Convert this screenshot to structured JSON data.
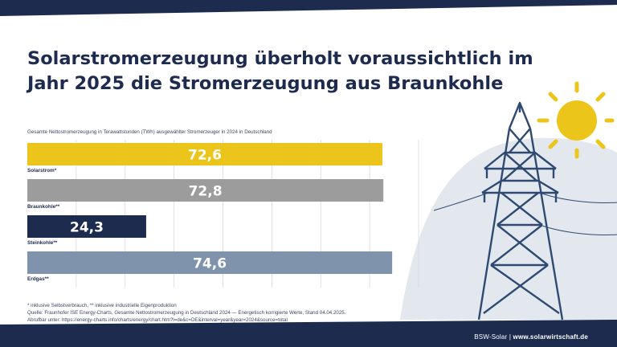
{
  "headline": {
    "line1": "Solarstromerzeugung überholt voraussichtlich im",
    "line2": "Jahr 2025 die Stromerzeugung aus Braunkohle"
  },
  "chart_data": {
    "type": "bar",
    "orientation": "horizontal",
    "subtitle": "Gesamte Nettostromerzeugung in Terawattstunden (TWh) ausgewählter Stromerzeuger in 2024 in Deutschland",
    "categories": [
      "Solarstrom*",
      "Braunkohle**",
      "Steinkohle**",
      "Erdgas**"
    ],
    "values": [
      72.6,
      72.8,
      24.3,
      74.6
    ],
    "value_labels": [
      "72,6",
      "72,8",
      "24,3",
      "74,6"
    ],
    "bar_colors": [
      "#ecc51b",
      "#9c9c9c",
      "#1d2b4f",
      "#7f93ad"
    ],
    "label_colors": [
      "#ffffff",
      "#ffffff",
      "#1d2b4f",
      "#ffffff"
    ],
    "xlim": [
      0,
      80
    ],
    "grid": true,
    "xlabel": "",
    "ylabel": ""
  },
  "footnotes": {
    "line1": "* inklusive Selbstverbrauch, ** inklusive industrielle Eigenproduktion",
    "line2": "Quelle: Fraunhofer ISE Energy-Charts, Gesamte Nettostromerzeugung in Deutschland 2024 — Energetisch korrigierte Werte, Stand 04.04.2025.",
    "line3": "Abrufbar unter: https://energy-charts.info/charts/energy/chart.htm?l=de&c=DE&interval=year&year=2024&source=total"
  },
  "brand": {
    "name": "BSW-Solar",
    "separator": " | ",
    "url": "www.solarwirtschaft.de"
  },
  "colors": {
    "navy": "#1d2b4f",
    "sun": "#ecc51b",
    "pylon": "#2f4a72",
    "hill": "#e3e8ef"
  },
  "illustration": {
    "icons": [
      "sun-icon",
      "power-pylon-icon"
    ]
  }
}
